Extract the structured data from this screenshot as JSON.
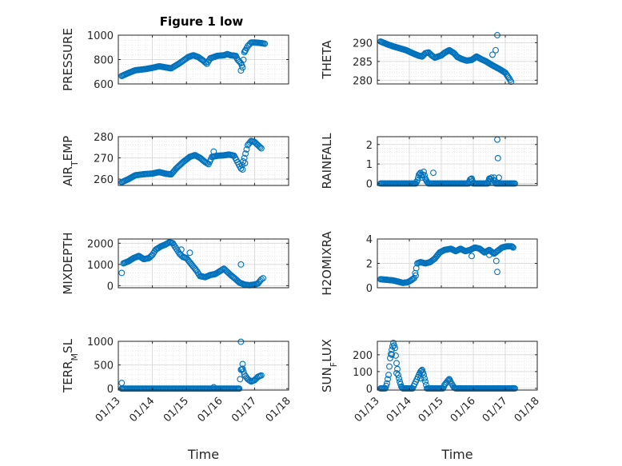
{
  "figure": {
    "title": "Figure 1 low"
  },
  "style": {
    "marker_color": "#0072BD",
    "axis_color": "#262626",
    "grid_color": "#DFDFDF"
  },
  "chart_data": [
    {
      "id": "pressure",
      "type": "scatter",
      "title": "Figure 1 low",
      "ylabel": "PRESSURE",
      "ylabel_parts": [
        [
          "PRESSURE",
          ""
        ]
      ],
      "xlabel": "",
      "xlim": [
        0,
        5
      ],
      "ylim": [
        600,
        1000
      ],
      "yticks": [
        600,
        800,
        1000
      ],
      "yticklabels": [
        "600",
        "800",
        "1000"
      ],
      "xticks": [
        0,
        1,
        2,
        3,
        4,
        5
      ],
      "xticklabels": [],
      "grid": true,
      "anchors": [
        [
          0.1,
          665
        ],
        [
          0.3,
          690
        ],
        [
          0.5,
          712
        ],
        [
          0.8,
          722
        ],
        [
          1.0,
          732
        ],
        [
          1.2,
          745
        ],
        [
          1.4,
          735
        ],
        [
          1.55,
          728
        ],
        [
          1.8,
          770
        ],
        [
          2.05,
          820
        ],
        [
          2.2,
          835
        ],
        [
          2.35,
          820
        ],
        [
          2.5,
          790
        ],
        [
          2.6,
          765
        ],
        [
          2.7,
          810
        ],
        [
          2.9,
          830
        ],
        [
          3.1,
          835
        ],
        [
          3.2,
          845
        ],
        [
          3.3,
          835
        ],
        [
          3.45,
          830
        ],
        [
          3.5,
          800
        ],
        [
          3.6,
          770
        ],
        [
          3.65,
          735
        ],
        [
          3.7,
          860
        ],
        [
          3.8,
          910
        ],
        [
          3.9,
          940
        ],
        [
          4.0,
          940
        ],
        [
          4.2,
          935
        ],
        [
          4.3,
          930
        ]
      ],
      "outliers": [
        [
          3.6,
          710
        ],
        [
          3.72,
          870
        ]
      ]
    },
    {
      "id": "theta",
      "type": "scatter",
      "title": "",
      "ylabel": "THETA",
      "ylabel_parts": [
        [
          "THETA",
          ""
        ]
      ],
      "xlabel": "",
      "xlim": [
        0,
        5
      ],
      "ylim": [
        279,
        292
      ],
      "yticks": [
        280,
        285,
        290
      ],
      "yticklabels": [
        "280",
        "285",
        "290"
      ],
      "xticks": [
        0,
        1,
        2,
        3,
        4,
        5
      ],
      "xticklabels": [],
      "grid": true,
      "anchors": [
        [
          0.1,
          290.3
        ],
        [
          0.3,
          289.6
        ],
        [
          0.5,
          289.0
        ],
        [
          0.7,
          288.5
        ],
        [
          0.9,
          288.0
        ],
        [
          1.1,
          287.2
        ],
        [
          1.3,
          286.5
        ],
        [
          1.4,
          286.3
        ],
        [
          1.5,
          287.2
        ],
        [
          1.6,
          287.4
        ],
        [
          1.7,
          286.6
        ],
        [
          1.8,
          286.0
        ],
        [
          1.9,
          286.3
        ],
        [
          2.0,
          286.6
        ],
        [
          2.1,
          287.3
        ],
        [
          2.25,
          288.0
        ],
        [
          2.4,
          287.2
        ],
        [
          2.5,
          286.2
        ],
        [
          2.65,
          285.6
        ],
        [
          2.8,
          285.2
        ],
        [
          2.95,
          285.4
        ],
        [
          3.1,
          286.3
        ],
        [
          3.25,
          285.6
        ],
        [
          3.4,
          285.0
        ],
        [
          3.55,
          284.2
        ],
        [
          3.7,
          283.5
        ],
        [
          3.85,
          282.8
        ],
        [
          4.0,
          282.0
        ],
        [
          4.12,
          280.5
        ],
        [
          4.18,
          279.6
        ]
      ],
      "outliers": [
        [
          3.75,
          292.2
        ],
        [
          3.7,
          288.0
        ],
        [
          3.6,
          286.8
        ]
      ]
    },
    {
      "id": "air_temp",
      "type": "scatter",
      "title": "",
      "ylabel": "AIR_TEMP",
      "ylabel_parts": [
        [
          "AIR",
          ""
        ],
        [
          "T",
          "sub"
        ],
        [
          "EMP",
          ""
        ]
      ],
      "xlabel": "",
      "xlim": [
        0,
        5
      ],
      "ylim": [
        257,
        280
      ],
      "yticks": [
        260,
        270,
        280
      ],
      "yticklabels": [
        "260",
        "270",
        "280"
      ],
      "xticks": [
        0,
        1,
        2,
        3,
        4,
        5
      ],
      "xticklabels": [],
      "grid": true,
      "anchors": [
        [
          0.1,
          258.5
        ],
        [
          0.3,
          260.0
        ],
        [
          0.5,
          261.8
        ],
        [
          0.75,
          262.3
        ],
        [
          1.0,
          262.6
        ],
        [
          1.2,
          263.3
        ],
        [
          1.4,
          262.5
        ],
        [
          1.55,
          262.2
        ],
        [
          1.7,
          265.0
        ],
        [
          1.9,
          268.0
        ],
        [
          2.1,
          270.5
        ],
        [
          2.25,
          271.3
        ],
        [
          2.4,
          270.0
        ],
        [
          2.55,
          268.0
        ],
        [
          2.65,
          267.0
        ],
        [
          2.75,
          270.5
        ],
        [
          2.9,
          271.0
        ],
        [
          3.1,
          271.2
        ],
        [
          3.25,
          271.6
        ],
        [
          3.4,
          271.0
        ],
        [
          3.5,
          268.0
        ],
        [
          3.6,
          265.0
        ],
        [
          3.7,
          270.0
        ],
        [
          3.8,
          276.0
        ],
        [
          3.9,
          278.0
        ],
        [
          4.0,
          277.5
        ],
        [
          4.1,
          276.0
        ],
        [
          4.2,
          274.5
        ]
      ],
      "outliers": [
        [
          2.8,
          273.0
        ],
        [
          3.65,
          264.5
        ],
        [
          3.72,
          267.5
        ]
      ]
    },
    {
      "id": "rainfall",
      "type": "scatter",
      "title": "",
      "ylabel": "RAINFALL",
      "ylabel_parts": [
        [
          "RAINFALL",
          ""
        ]
      ],
      "xlabel": "",
      "xlim": [
        0,
        5
      ],
      "ylim": [
        -0.1,
        2.4
      ],
      "yticks": [
        0,
        1,
        2
      ],
      "yticklabels": [
        "0",
        "1",
        "2"
      ],
      "xticks": [
        0,
        1,
        2,
        3,
        4,
        5
      ],
      "xticklabels": [],
      "grid": true,
      "anchors": [
        [
          0.1,
          0
        ],
        [
          1.2,
          0
        ],
        [
          1.25,
          0.15
        ],
        [
          1.3,
          0.45
        ],
        [
          1.35,
          0.55
        ],
        [
          1.4,
          0.3
        ],
        [
          1.45,
          0.6
        ],
        [
          1.5,
          0.25
        ],
        [
          1.55,
          0.1
        ],
        [
          1.6,
          0
        ],
        [
          2.85,
          0
        ],
        [
          2.9,
          0.2
        ],
        [
          2.95,
          0.25
        ],
        [
          3.0,
          0
        ],
        [
          3.45,
          0
        ],
        [
          3.5,
          0.25
        ],
        [
          3.55,
          0.2
        ],
        [
          3.6,
          0.05
        ],
        [
          3.65,
          0.3
        ],
        [
          3.7,
          0
        ],
        [
          4.3,
          0
        ]
      ],
      "outliers": [
        [
          1.75,
          0.55
        ],
        [
          3.75,
          2.25
        ],
        [
          3.77,
          1.3
        ],
        [
          3.8,
          0.3
        ],
        [
          3.57,
          0.3
        ]
      ]
    },
    {
      "id": "mixdepth",
      "type": "scatter",
      "title": "",
      "ylabel": "MIXDEPTH",
      "ylabel_parts": [
        [
          "MIXDEPTH",
          ""
        ]
      ],
      "xlabel": "",
      "xlim": [
        0,
        5
      ],
      "ylim": [
        -100,
        2200
      ],
      "yticks": [
        0,
        1000,
        2000
      ],
      "yticklabels": [
        "0",
        "1000",
        "2000"
      ],
      "xticks": [
        0,
        1,
        2,
        3,
        4,
        5
      ],
      "xticklabels": [],
      "grid": true,
      "anchors": [
        [
          0.15,
          1050
        ],
        [
          0.3,
          1150
        ],
        [
          0.45,
          1300
        ],
        [
          0.6,
          1400
        ],
        [
          0.75,
          1250
        ],
        [
          0.9,
          1300
        ],
        [
          1.0,
          1450
        ],
        [
          1.1,
          1700
        ],
        [
          1.25,
          1850
        ],
        [
          1.4,
          1950
        ],
        [
          1.5,
          2050
        ],
        [
          1.6,
          2000
        ],
        [
          1.7,
          1750
        ],
        [
          1.8,
          1500
        ],
        [
          1.9,
          1350
        ],
        [
          2.0,
          1300
        ],
        [
          2.15,
          1000
        ],
        [
          2.3,
          700
        ],
        [
          2.4,
          450
        ],
        [
          2.55,
          400
        ],
        [
          2.7,
          500
        ],
        [
          2.85,
          550
        ],
        [
          3.0,
          700
        ],
        [
          3.1,
          800
        ],
        [
          3.2,
          650
        ],
        [
          3.3,
          500
        ],
        [
          3.45,
          300
        ],
        [
          3.55,
          150
        ],
        [
          3.7,
          50
        ],
        [
          3.85,
          20
        ],
        [
          4.0,
          50
        ],
        [
          4.1,
          100
        ],
        [
          4.2,
          300
        ]
      ],
      "outliers": [
        [
          0.1,
          600
        ],
        [
          3.6,
          1000
        ],
        [
          4.25,
          350
        ],
        [
          1.85,
          1700
        ],
        [
          2.1,
          1550
        ]
      ]
    },
    {
      "id": "h2omixra",
      "type": "scatter",
      "title": "",
      "ylabel": "H2OMIXRA",
      "ylabel_parts": [
        [
          "H2OMIXRA",
          ""
        ]
      ],
      "xlabel": "",
      "xlim": [
        0,
        5
      ],
      "ylim": [
        0,
        4
      ],
      "yticks": [
        0,
        2,
        4
      ],
      "yticklabels": [
        "0",
        "2",
        "4"
      ],
      "xticks": [
        0,
        1,
        2,
        3,
        4,
        5
      ],
      "xticklabels": [],
      "grid": true,
      "anchors": [
        [
          0.1,
          0.7
        ],
        [
          0.3,
          0.65
        ],
        [
          0.5,
          0.6
        ],
        [
          0.65,
          0.5
        ],
        [
          0.8,
          0.4
        ],
        [
          0.95,
          0.45
        ],
        [
          1.05,
          0.6
        ],
        [
          1.15,
          0.8
        ],
        [
          1.25,
          2.0
        ],
        [
          1.35,
          2.1
        ],
        [
          1.5,
          2.0
        ],
        [
          1.65,
          2.1
        ],
        [
          1.8,
          2.4
        ],
        [
          1.95,
          2.9
        ],
        [
          2.1,
          3.1
        ],
        [
          2.3,
          3.2
        ],
        [
          2.45,
          3.0
        ],
        [
          2.6,
          3.2
        ],
        [
          2.75,
          3.0
        ],
        [
          2.9,
          3.1
        ],
        [
          3.05,
          3.3
        ],
        [
          3.2,
          3.2
        ],
        [
          3.35,
          2.9
        ],
        [
          3.5,
          3.1
        ],
        [
          3.65,
          2.8
        ],
        [
          3.75,
          3.0
        ],
        [
          3.9,
          3.3
        ],
        [
          4.05,
          3.4
        ],
        [
          4.2,
          3.4
        ],
        [
          4.25,
          3.3
        ]
      ],
      "outliers": [
        [
          1.2,
          1.0
        ],
        [
          3.75,
          1.3
        ],
        [
          3.72,
          2.2
        ],
        [
          2.95,
          2.6
        ],
        [
          3.5,
          2.7
        ]
      ]
    },
    {
      "id": "terr_msl",
      "type": "scatter",
      "title": "",
      "ylabel": "TERR_MSL",
      "ylabel_parts": [
        [
          "TERR",
          ""
        ],
        [
          "M",
          "sub"
        ],
        [
          "SL",
          ""
        ]
      ],
      "xlabel": "Time",
      "xlim": [
        0,
        5
      ],
      "ylim": [
        -30,
        1000
      ],
      "yticks": [
        0,
        500,
        1000
      ],
      "yticklabels": [
        "0",
        "500",
        "1000"
      ],
      "xticks": [
        0,
        1,
        2,
        3,
        4,
        5
      ],
      "xticklabels": [
        "01/13",
        "01/14",
        "01/15",
        "01/16",
        "01/17",
        "01/18"
      ],
      "grid": true,
      "anchors": [
        [
          0.1,
          0
        ],
        [
          3.5,
          0
        ],
        [
          3.55,
          0
        ],
        [
          3.6,
          400
        ],
        [
          3.65,
          420
        ],
        [
          3.7,
          300
        ],
        [
          3.8,
          200
        ],
        [
          3.9,
          150
        ],
        [
          4.0,
          180
        ],
        [
          4.1,
          250
        ],
        [
          4.2,
          280
        ]
      ],
      "outliers": [
        [
          0.1,
          120
        ],
        [
          3.6,
          990
        ],
        [
          3.65,
          520
        ],
        [
          2.8,
          30
        ]
      ]
    },
    {
      "id": "sun_flux",
      "type": "scatter",
      "title": "",
      "ylabel": "SUN_FLUX",
      "ylabel_parts": [
        [
          "SUN",
          ""
        ],
        [
          "F",
          "sub"
        ],
        [
          "LUX",
          ""
        ]
      ],
      "xlabel": "Time",
      "xlim": [
        0,
        5
      ],
      "ylim": [
        -10,
        280
      ],
      "yticks": [
        0,
        100,
        200
      ],
      "yticklabels": [
        "0",
        "100",
        "200"
      ],
      "xticks": [
        0,
        1,
        2,
        3,
        4,
        5
      ],
      "xticklabels": [
        "01/13",
        "01/14",
        "01/15",
        "01/16",
        "01/17",
        "01/18"
      ],
      "grid": true,
      "anchors": [
        [
          0.1,
          0
        ],
        [
          0.25,
          0
        ],
        [
          0.3,
          30
        ],
        [
          0.35,
          80
        ],
        [
          0.4,
          180
        ],
        [
          0.45,
          230
        ],
        [
          0.5,
          270
        ],
        [
          0.55,
          240
        ],
        [
          0.6,
          150
        ],
        [
          0.65,
          80
        ],
        [
          0.7,
          40
        ],
        [
          0.75,
          10
        ],
        [
          0.8,
          0
        ],
        [
          1.1,
          0
        ],
        [
          1.2,
          40
        ],
        [
          1.3,
          80
        ],
        [
          1.35,
          100
        ],
        [
          1.4,
          110
        ],
        [
          1.45,
          80
        ],
        [
          1.5,
          40
        ],
        [
          1.55,
          0
        ],
        [
          2.05,
          0
        ],
        [
          2.1,
          20
        ],
        [
          2.2,
          45
        ],
        [
          2.25,
          55
        ],
        [
          2.3,
          35
        ],
        [
          2.4,
          5
        ],
        [
          2.45,
          0
        ],
        [
          4.3,
          0
        ]
      ],
      "outliers": [
        [
          0.45,
          200
        ],
        [
          0.6,
          90
        ],
        [
          1.35,
          60
        ]
      ]
    }
  ]
}
